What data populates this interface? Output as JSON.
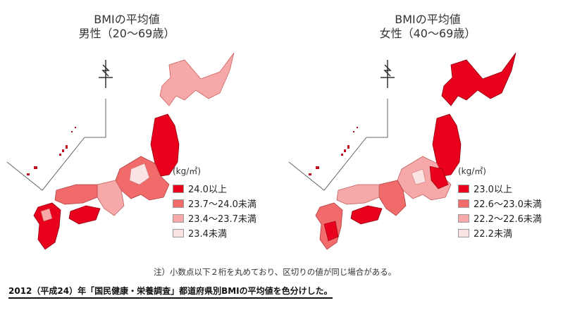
{
  "panels": [
    {
      "title_line1": "BMIの平均値",
      "title_line2": "男性（20～69歳）",
      "legend_unit": "(kg/㎡)",
      "legend": [
        {
          "label": "24.0以上",
          "color": "#e8001c"
        },
        {
          "label": "23.7～24.0未満",
          "color": "#f26b6b"
        },
        {
          "label": "23.4～23.7未満",
          "color": "#f7a9a9"
        },
        {
          "label": "23.4未満",
          "color": "#fce3e3"
        }
      ]
    },
    {
      "title_line1": "BMIの平均値",
      "title_line2": "女性（40～69歳）",
      "legend_unit": "(kg/㎡)",
      "legend": [
        {
          "label": "23.0以上",
          "color": "#e8001c"
        },
        {
          "label": "22.6～23.0未満",
          "color": "#f26b6b"
        },
        {
          "label": "22.2～22.6未満",
          "color": "#f7a9a9"
        },
        {
          "label": "22.2未満",
          "color": "#fce3e3"
        }
      ]
    }
  ],
  "note": "注）小数点以下２桁を丸めており、区切りの値が同じ場合がある。",
  "footer": "2012（平成24）年「国民健康・栄養調査」都道府県別BMIの平均値を色分けした。"
}
